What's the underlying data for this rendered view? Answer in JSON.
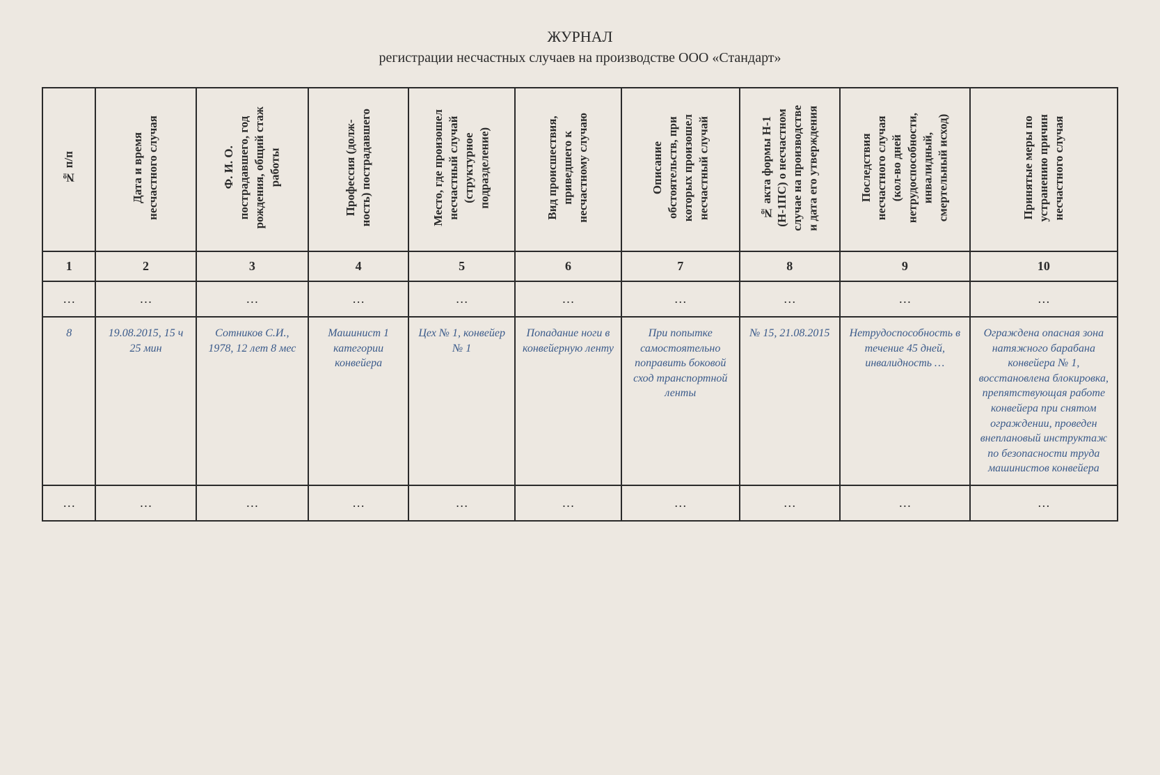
{
  "title": {
    "main": "ЖУРНАЛ",
    "sub": "регистрации несчастных случаев на производстве ООО «Стандарт»"
  },
  "columns": [
    {
      "header": "№ п/п",
      "num": "1"
    },
    {
      "header": "Дата и время\nнесчастного случая",
      "num": "2"
    },
    {
      "header": "Ф. И. О.\nпострадавшего, год\nрождения, общий стаж\nработы",
      "num": "3"
    },
    {
      "header": "Профессия (долж-\nность) пострадавшего",
      "num": "4"
    },
    {
      "header": "Место, где произошел\nнесчастный случай\n(структурное\nподразделение)",
      "num": "5"
    },
    {
      "header": "Вид происшествия,\nприведшего к\nнесчастному случаю",
      "num": "6"
    },
    {
      "header": "Описание\nобстоятельств, при\nкоторых произошел\nнесчастный случай",
      "num": "7"
    },
    {
      "header": "№ акта формы Н-1\n(Н-1ПС) о несчастном\nслучае на производстве\nи дата его утверждения",
      "num": "8"
    },
    {
      "header": "Последствия\nнесчастного случая\n(кол-во дней\nнетрудоспособности,\nинвалидный,\nсмертельный исход)",
      "num": "9"
    },
    {
      "header": "Принятые меры по\nустранению причин\nнесчастного случая",
      "num": "10"
    }
  ],
  "ellipsis": "…",
  "data_row": {
    "c1": "8",
    "c2": "19.08.2015, 15 ч 25 мин",
    "c3": "Сотников С.И., 1978, 12 лет 8 мес",
    "c4": "Машинист 1 категории конвейера",
    "c5": "Цех № 1, конвейер № 1",
    "c6": "Попадание ноги в конвейер­ную ленту",
    "c7": "При попытке самостоя­тельно поправить боковой сход транспорт­ной ленты",
    "c8": "№ 15, 21.08.2015",
    "c9": "Нетрудоспособ­ность в течение 45 дней, инвалидность …",
    "c10": "Ограждена опасная зона натяжного барабана конвейера № 1, восстановлена блокировка, препятствующая работе конвейера при снятом ограждении, проведен внеплановый инструктаж по безопасности труда машинистов конвейера"
  },
  "styling": {
    "background_color": "#ede8e1",
    "border_color": "#2a2a2a",
    "text_color": "#2a2a2a",
    "data_text_color": "#3a5a8a",
    "title_fontsize": 22,
    "subtitle_fontsize": 20,
    "header_fontsize": 17,
    "number_row_fontsize": 18,
    "data_fontsize": 16,
    "font_family": "Georgia, Times New Roman, serif"
  }
}
